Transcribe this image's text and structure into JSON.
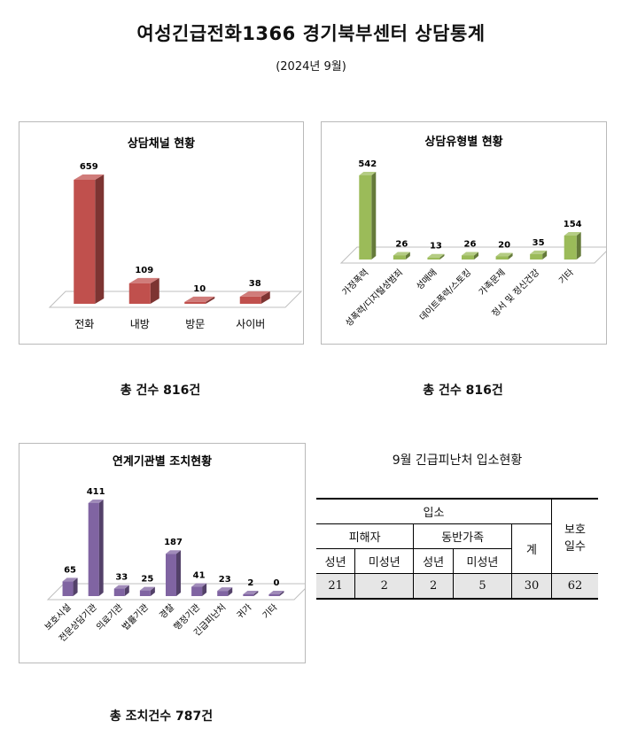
{
  "header": {
    "title": "여성긴급전화1366 경기북부센터 상담통계",
    "subtitle": "(2024년  9월)"
  },
  "chart_data": [
    {
      "type": "bar",
      "title": "상담채널 현황",
      "categories": [
        "전화",
        "내방",
        "방문",
        "사이버"
      ],
      "values": [
        659,
        109,
        10,
        38
      ],
      "color": "#c0504d",
      "total_label": "총 건수 816건"
    },
    {
      "type": "bar",
      "title": "상담유형별 현황",
      "categories": [
        "가정폭력",
        "성폭력/디지털성범죄",
        "성매매",
        "데이트폭력/스토킹",
        "가족문제",
        "정서 및 정신건강",
        "기타"
      ],
      "values": [
        542,
        26,
        13,
        26,
        20,
        35,
        154
      ],
      "color": "#9bbb59",
      "total_label": "총 건수 816건"
    },
    {
      "type": "bar",
      "title": "연계기관별 조치현황",
      "categories": [
        "보호시설",
        "전문상담기관",
        "의료기관",
        "법률기관",
        "경찰",
        "행정기관",
        "긴급피난처",
        "귀가",
        "기타"
      ],
      "values": [
        65,
        411,
        33,
        25,
        187,
        41,
        23,
        2,
        0
      ],
      "color": "#8064a2",
      "total_label": "총 조치건수 787건"
    }
  ],
  "refuge": {
    "title": "9월 긴급피난처 입소현황",
    "header_admission": "입소",
    "header_protection": "보호\n일수",
    "header_victim": "피해자",
    "header_family": "동반가족",
    "header_total": "계",
    "sub_adult_1": "성년",
    "sub_minor_1": "미성년",
    "sub_adult_2": "성년",
    "sub_minor_2": "미성년",
    "victim_adult": "21",
    "victim_minor": "2",
    "family_adult": "2",
    "family_minor": "5",
    "total": "30",
    "days": "62"
  }
}
